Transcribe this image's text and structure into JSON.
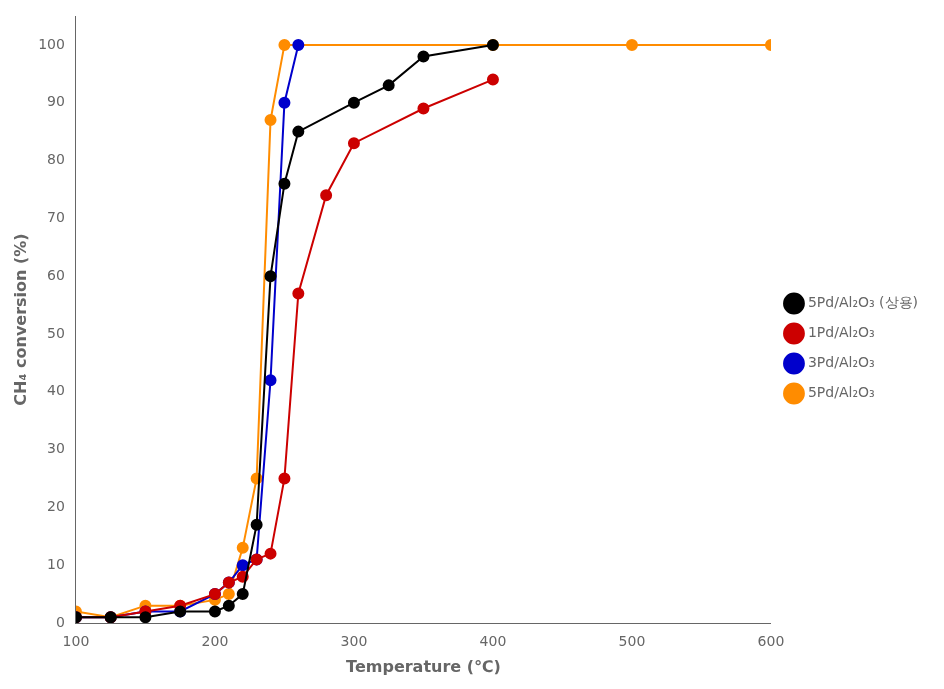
{
  "chart_data": {
    "type": "line",
    "xlabel": "Temperature (℃)",
    "ylabel": "CH₄ conversion (%)",
    "xlim": [
      100,
      600
    ],
    "ylim": [
      0,
      105
    ],
    "xticks": [
      100,
      200,
      300,
      400,
      500,
      600
    ],
    "yticks": [
      0,
      10,
      20,
      30,
      40,
      50,
      60,
      70,
      80,
      90,
      100
    ],
    "grid": false,
    "legend": "right",
    "series": [
      {
        "name": "5Pd/Al₂O₃ (상용)",
        "color": "#000000",
        "marker": "circle",
        "x": [
          100,
          125,
          150,
          175,
          200,
          210,
          220,
          230,
          240,
          250,
          260,
          300,
          325,
          350,
          400
        ],
        "values": [
          1,
          1,
          1,
          2,
          2,
          3,
          5,
          17,
          60,
          76,
          85,
          90,
          93,
          98,
          100
        ]
      },
      {
        "name": "1Pd/Al₂O₃",
        "color": "#cc0000",
        "marker": "circle",
        "x": [
          100,
          125,
          150,
          175,
          200,
          210,
          220,
          230,
          240,
          250,
          260,
          280,
          300,
          350,
          400
        ],
        "values": [
          1,
          1,
          2,
          3,
          5,
          7,
          8,
          11,
          12,
          25,
          57,
          74,
          83,
          89,
          94
        ]
      },
      {
        "name": "3Pd/Al₂O₃",
        "color": "#0000cc",
        "marker": "circle",
        "x": [
          100,
          125,
          150,
          175,
          200,
          210,
          220,
          230,
          240,
          250,
          260
        ],
        "values": [
          1,
          1,
          2,
          2,
          5,
          7,
          10,
          11,
          42,
          90,
          100
        ]
      },
      {
        "name": "5Pd/Al₂O₃",
        "color": "#ff8c00",
        "marker": "circle",
        "x": [
          100,
          125,
          150,
          175,
          200,
          210,
          220,
          230,
          240,
          250,
          400,
          500,
          600
        ],
        "values": [
          2,
          1,
          3,
          3,
          4,
          5,
          13,
          25,
          87,
          100,
          100,
          100,
          100
        ]
      }
    ]
  }
}
